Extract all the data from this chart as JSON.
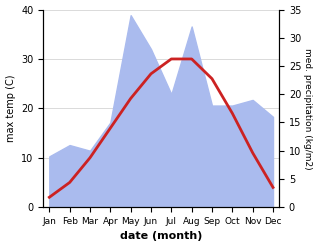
{
  "months": [
    "Jan",
    "Feb",
    "Mar",
    "Apr",
    "May",
    "Jun",
    "Jul",
    "Aug",
    "Sep",
    "Oct",
    "Nov",
    "Dec"
  ],
  "temperature": [
    2,
    5,
    10,
    16,
    22,
    27,
    30,
    30,
    26,
    19,
    11,
    4
  ],
  "precipitation": [
    9,
    11,
    10,
    15,
    34,
    28,
    20,
    32,
    18,
    18,
    19,
    16
  ],
  "temp_color": "#cc2222",
  "precip_color": "#aabbee",
  "ylim_left": [
    0,
    40
  ],
  "ylim_right": [
    0,
    35
  ],
  "xlabel": "date (month)",
  "ylabel_left": "max temp (C)",
  "ylabel_right": "med. precipitation (kg/m2)",
  "bg_color": "#ffffff",
  "temp_linewidth": 2.0
}
